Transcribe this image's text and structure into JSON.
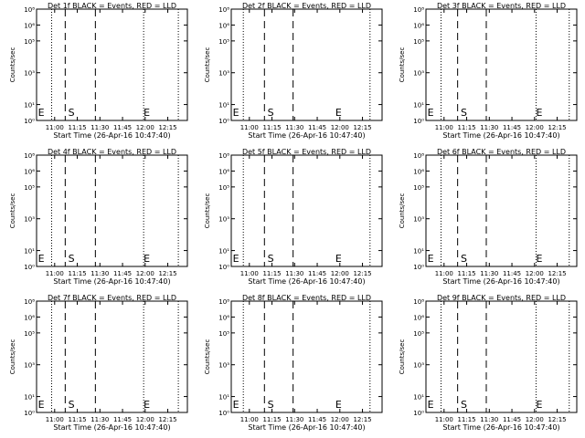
{
  "chart_data": {
    "type": "line",
    "x_tick_labels": [
      "11:00",
      "11:15",
      "11:30",
      "11:45",
      "12:00",
      "12:15"
    ],
    "x_tick_values_min": [
      0,
      15,
      30,
      45,
      60,
      75
    ],
    "x_range_min": [
      -12,
      88
    ],
    "y_scale": "log",
    "y_ylim": [
      1,
      10000000
    ],
    "y_tick_labels": [
      "10⁰",
      "10¹",
      "10³",
      "10⁵",
      "10⁶",
      "10⁸"
    ],
    "y_tick_values": [
      1,
      10,
      1000,
      100000,
      1000000,
      100000000
    ],
    "grid": false,
    "panels": [
      {
        "title": "Det 1f BLACK = Events, RED = LLD",
        "ylabel": "Counts/sec",
        "xlabel": "Start Time (26-Apr-16 10:47:40)",
        "dotted_lines_min": [
          -2,
          59,
          82
        ],
        "dashed_lines_min": [
          7,
          27
        ],
        "markers": [
          {
            "text": "E",
            "x_min": -11
          },
          {
            "text": "S",
            "x_min": 9
          },
          {
            "text": "E",
            "x_min": 59
          }
        ]
      },
      {
        "title": "Det 2f BLACK = Events, RED = LLD",
        "ylabel": "Counts/sec",
        "xlabel": "Start Time (26-Apr-16 10:47:40)",
        "dotted_lines_min": [
          -4,
          80
        ],
        "dashed_lines_min": [
          10,
          29
        ],
        "markers": [
          {
            "text": "E",
            "x_min": -11
          },
          {
            "text": "S",
            "x_min": 12
          },
          {
            "text": "E",
            "x_min": 57
          }
        ]
      },
      {
        "title": "Det 3f BLACK = Events, RED = LLD",
        "ylabel": "Counts/sec",
        "xlabel": "Start Time (26-Apr-16 10:47:40)",
        "dotted_lines_min": [
          -2,
          61,
          83
        ],
        "dashed_lines_min": [
          9,
          28
        ],
        "markers": [
          {
            "text": "E",
            "x_min": -11
          },
          {
            "text": "S",
            "x_min": 11
          },
          {
            "text": "E",
            "x_min": 61
          }
        ]
      },
      {
        "title": "Det 4f BLACK = Events, RED = LLD",
        "ylabel": "Counts/sec",
        "xlabel": "Start Time (26-Apr-16 10:47:40)",
        "dotted_lines_min": [
          -2,
          59,
          82
        ],
        "dashed_lines_min": [
          7,
          27
        ],
        "markers": [
          {
            "text": "E",
            "x_min": -11
          },
          {
            "text": "S",
            "x_min": 9
          },
          {
            "text": "E",
            "x_min": 59
          }
        ]
      },
      {
        "title": "Det 5f BLACK = Events, RED = LLD",
        "ylabel": "Counts/sec",
        "xlabel": "Start Time (26-Apr-16 10:47:40)",
        "dotted_lines_min": [
          -4,
          80
        ],
        "dashed_lines_min": [
          10,
          29
        ],
        "markers": [
          {
            "text": "E",
            "x_min": -11
          },
          {
            "text": "S",
            "x_min": 12
          },
          {
            "text": "E",
            "x_min": 57
          }
        ]
      },
      {
        "title": "Det 6f BLACK = Events, RED = LLD",
        "ylabel": "Counts/sec",
        "xlabel": "Start Time (26-Apr-16 10:47:40)",
        "dotted_lines_min": [
          -2,
          61,
          83
        ],
        "dashed_lines_min": [
          9,
          28
        ],
        "markers": [
          {
            "text": "E",
            "x_min": -11
          },
          {
            "text": "S",
            "x_min": 11
          },
          {
            "text": "E",
            "x_min": 61
          }
        ]
      },
      {
        "title": "Det 7f BLACK = Events, RED = LLD",
        "ylabel": "Counts/sec",
        "xlabel": "Start Time (26-Apr-16 10:47:40)",
        "dotted_lines_min": [
          -2,
          59,
          82
        ],
        "dashed_lines_min": [
          7,
          27
        ],
        "markers": [
          {
            "text": "E",
            "x_min": -11
          },
          {
            "text": "S",
            "x_min": 9
          },
          {
            "text": "E",
            "x_min": 59
          }
        ]
      },
      {
        "title": "Det 8f BLACK = Events, RED = LLD",
        "ylabel": "Counts/sec",
        "xlabel": "Start Time (26-Apr-16 10:47:40)",
        "dotted_lines_min": [
          -4,
          80
        ],
        "dashed_lines_min": [
          10,
          29
        ],
        "markers": [
          {
            "text": "E",
            "x_min": -11
          },
          {
            "text": "S",
            "x_min": 12
          },
          {
            "text": "E",
            "x_min": 57
          }
        ]
      },
      {
        "title": "Det 9f BLACK = Events, RED = LLD",
        "ylabel": "Counts/sec",
        "xlabel": "Start Time (26-Apr-16 10:47:40)",
        "dotted_lines_min": [
          -2,
          61,
          83
        ],
        "dashed_lines_min": [
          9,
          28
        ],
        "markers": [
          {
            "text": "E",
            "x_min": -11
          },
          {
            "text": "S",
            "x_min": 11
          },
          {
            "text": "E",
            "x_min": 61
          }
        ]
      }
    ]
  },
  "colors": {
    "foreground": "#000000",
    "background": "#ffffff"
  }
}
